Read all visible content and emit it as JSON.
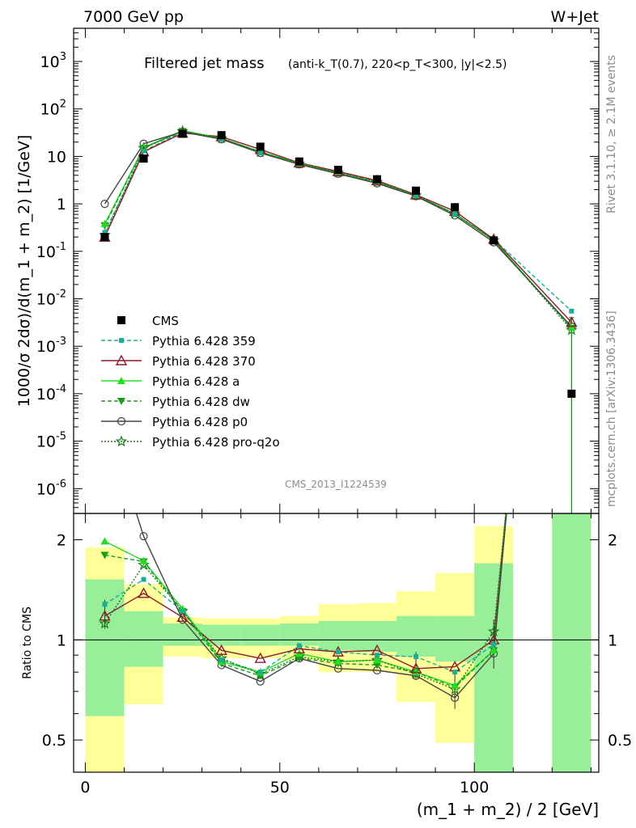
{
  "header": {
    "left": "7000 GeV pp",
    "right": "W+Jet"
  },
  "title": {
    "main": "Filtered jet mass",
    "detail": "(anti-k_T(0.7), 220<p_T<300, |y|<2.5)"
  },
  "side_labels": {
    "rivet": "Rivet 3.1.10, ≥ 2.1M events",
    "source": "mcplots.cern.ch [arXiv:1306.3436]"
  },
  "analysis_id": "CMS_2013_I1224539",
  "chart_data": [
    {
      "type": "line",
      "panel": "main",
      "ylabel": "1000/σ 2dσ)/d(m_1 + m_2) [1/GeV]",
      "yscale": "log",
      "ylim": [
        3e-07,
        5000
      ],
      "xlim": [
        -3,
        132
      ],
      "y_ticks": [
        "10^-6",
        "10^-5",
        "10^-4",
        "10^-3",
        "10^-2",
        "10^-1",
        "1",
        "10",
        "10^2",
        "10^3"
      ],
      "x": [
        5,
        15,
        25,
        35,
        45,
        55,
        65,
        75,
        85,
        95,
        105,
        125
      ],
      "series": [
        {
          "name": "CMS",
          "color": "#000000",
          "marker": "square",
          "style": "points",
          "values": [
            0.2,
            9,
            30,
            28,
            16,
            7.8,
            5.2,
            3.3,
            1.9,
            0.85,
            0.17,
            0.0001
          ]
        },
        {
          "name": "Pythia 6.428 359",
          "color": "#1aae95",
          "marker": "small-square",
          "style": "dashed",
          "values": [
            0.25,
            13,
            33,
            23,
            12.2,
            7.4,
            4.7,
            3.0,
            1.5,
            0.6,
            0.18,
            0.0055
          ]
        },
        {
          "name": "Pythia 6.428 370",
          "color": "#8b1a2b",
          "marker": "open-triangle",
          "style": "solid",
          "values": [
            0.2,
            12.5,
            31,
            26,
            14,
            7.3,
            4.8,
            3.1,
            1.55,
            0.7,
            0.18,
            0.0032
          ]
        },
        {
          "name": "Pythia 6.428 a",
          "color": "#22dd22",
          "marker": "triangle",
          "style": "solid",
          "values": [
            0.38,
            15.5,
            35,
            24,
            12.5,
            7.1,
            4.5,
            2.9,
            1.5,
            0.62,
            0.17,
            0.0025
          ]
        },
        {
          "name": "Pythia 6.428 dw",
          "color": "#16a016",
          "marker": "triangle-down",
          "style": "dashed",
          "values": [
            0.35,
            15,
            34,
            24,
            12.5,
            7.0,
            4.4,
            2.8,
            1.5,
            0.62,
            0.17,
            0.0024
          ]
        },
        {
          "name": "Pythia 6.428 p0",
          "color": "#444444",
          "marker": "open-circle",
          "style": "solid",
          "values": [
            1.0,
            18.5,
            33,
            23,
            11.8,
            6.8,
            4.3,
            2.7,
            1.45,
            0.57,
            0.155,
            0.0026
          ]
        },
        {
          "name": "Pythia 6.428 pro-q2o",
          "color": "#1e7a1e",
          "marker": "open-star",
          "style": "dotted",
          "values": [
            0.22,
            15,
            34,
            24,
            12.3,
            7.0,
            4.5,
            2.9,
            1.5,
            0.62,
            0.17,
            0.0022
          ]
        }
      ]
    },
    {
      "type": "line",
      "panel": "ratio",
      "ylabel": "Ratio to CMS",
      "yscale": "log",
      "ylim": [
        0.4,
        2.4
      ],
      "xlim": [
        -3,
        132
      ],
      "xlabel": "(m_1 + m_2) / 2 [GeV]",
      "x_ticks": [
        "0",
        "50",
        "100"
      ],
      "y_ticks": [
        "0.5",
        "1",
        "2"
      ],
      "x": [
        5,
        15,
        25,
        35,
        45,
        55,
        65,
        75,
        85,
        95,
        105
      ],
      "bands": {
        "edges": [
          0,
          10,
          20,
          30,
          40,
          50,
          60,
          70,
          80,
          90,
          100,
          110,
          120,
          130
        ],
        "stat": [
          [
            0.59,
            1.52
          ],
          [
            0.83,
            1.22
          ],
          [
            0.96,
            1.12
          ],
          [
            0.96,
            1.11
          ],
          [
            0.96,
            1.11
          ],
          [
            0.96,
            1.12
          ],
          [
            0.93,
            1.14
          ],
          [
            0.92,
            1.14
          ],
          [
            0.89,
            1.18
          ],
          [
            0.86,
            1.18
          ],
          [
            0.3,
            1.7
          ],
          null,
          [
            0.3,
            3.0
          ]
        ],
        "total": [
          [
            0.35,
            1.9
          ],
          [
            0.64,
            1.47
          ],
          [
            0.89,
            1.17
          ],
          [
            0.88,
            1.16
          ],
          [
            0.88,
            1.16
          ],
          [
            0.87,
            1.18
          ],
          [
            0.8,
            1.28
          ],
          [
            0.8,
            1.29
          ],
          [
            0.65,
            1.4
          ],
          [
            0.49,
            1.59
          ],
          [
            0.3,
            2.2
          ],
          null,
          [
            0.3,
            3.0
          ]
        ],
        "stat_color": "#99ee99",
        "total_color": "#ffff99"
      },
      "series": [
        {
          "name": "Pythia 6.428 359",
          "values": [
            1.28,
            1.52,
            1.22,
            0.87,
            0.8,
            0.96,
            0.92,
            0.9,
            0.89,
            0.8,
            0.97
          ]
        },
        {
          "name": "Pythia 6.428 370",
          "values": [
            1.18,
            1.38,
            1.17,
            0.93,
            0.88,
            0.94,
            0.92,
            0.93,
            0.82,
            0.83,
            1.0
          ]
        },
        {
          "name": "Pythia 6.428 a",
          "values": [
            1.98,
            1.73,
            1.24,
            0.86,
            0.8,
            0.91,
            0.86,
            0.87,
            0.8,
            0.73,
            0.93
          ]
        },
        {
          "name": "Pythia 6.428 dw",
          "values": [
            1.8,
            1.72,
            1.22,
            0.85,
            0.78,
            0.88,
            0.85,
            0.84,
            0.8,
            0.72,
            0.93
          ]
        },
        {
          "name": "Pythia 6.428 p0",
          "values": [
            4.8,
            2.05,
            1.15,
            0.84,
            0.75,
            0.88,
            0.82,
            0.81,
            0.78,
            0.67,
            0.91
          ]
        },
        {
          "name": "Pythia 6.428 pro-q2o",
          "values": [
            1.12,
            1.68,
            1.22,
            0.88,
            0.79,
            0.89,
            0.86,
            0.87,
            0.79,
            0.71,
            1.06
          ]
        }
      ],
      "uptick_target": 4.0
    }
  ]
}
